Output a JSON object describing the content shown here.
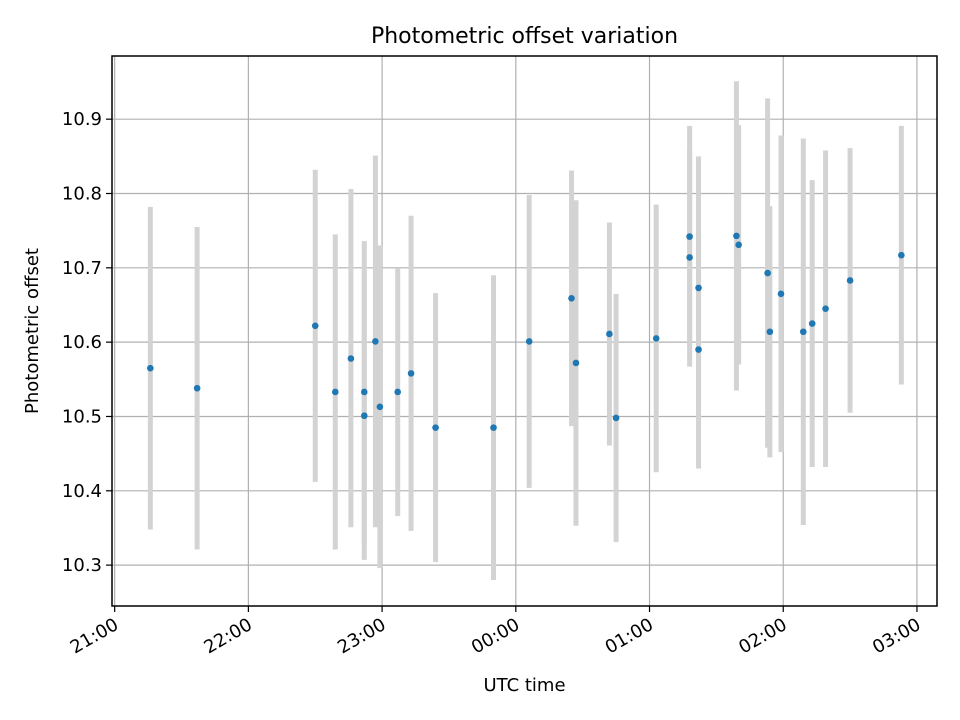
{
  "chart_data": {
    "type": "scatter",
    "title": "Photometric offset variation",
    "xlabel": "UTC time",
    "ylabel": "Photometric offset",
    "x_ticks": [
      "21:00",
      "22:00",
      "23:00",
      "00:00",
      "01:00",
      "02:00",
      "03:00"
    ],
    "y_ticks": [
      "10.3",
      "10.4",
      "10.5",
      "10.6",
      "10.7",
      "10.8",
      "10.9"
    ],
    "x_unit": "hours since 21:00 UTC",
    "xlim": [
      -0.02,
      6.15
    ],
    "ylim": [
      10.245,
      10.985
    ],
    "grid": true,
    "marker_color": "#1f77b4",
    "errorbar_color": "#d3d3d3",
    "points": [
      {
        "time": "21:16",
        "value": 10.565,
        "low": 10.348,
        "high": 10.782
      },
      {
        "time": "21:37",
        "value": 10.538,
        "low": 10.321,
        "high": 10.755
      },
      {
        "time": "22:30",
        "value": 10.622,
        "low": 10.412,
        "high": 10.832
      },
      {
        "time": "22:39",
        "value": 10.533,
        "low": 10.321,
        "high": 10.745
      },
      {
        "time": "22:46",
        "value": 10.578,
        "low": 10.351,
        "high": 10.806
      },
      {
        "time": "22:52",
        "value": 10.533,
        "low": 10.33,
        "high": 10.736
      },
      {
        "time": "22:52",
        "value": 10.501,
        "low": 10.307,
        "high": 10.695
      },
      {
        "time": "22:57",
        "value": 10.601,
        "low": 10.351,
        "high": 10.851
      },
      {
        "time": "22:59",
        "value": 10.513,
        "low": 10.296,
        "high": 10.73
      },
      {
        "time": "23:07",
        "value": 10.533,
        "low": 10.366,
        "high": 10.7
      },
      {
        "time": "23:13",
        "value": 10.558,
        "low": 10.346,
        "high": 10.77
      },
      {
        "time": "23:24",
        "value": 10.485,
        "low": 10.304,
        "high": 10.666
      },
      {
        "time": "23:50",
        "value": 10.485,
        "low": 10.28,
        "high": 10.69
      },
      {
        "time": "00:06",
        "value": 10.601,
        "low": 10.404,
        "high": 10.798
      },
      {
        "time": "00:25",
        "value": 10.659,
        "low": 10.487,
        "high": 10.831
      },
      {
        "time": "00:27",
        "value": 10.572,
        "low": 10.353,
        "high": 10.791
      },
      {
        "time": "00:42",
        "value": 10.611,
        "low": 10.461,
        "high": 10.761
      },
      {
        "time": "00:45",
        "value": 10.498,
        "low": 10.331,
        "high": 10.665
      },
      {
        "time": "01:03",
        "value": 10.605,
        "low": 10.425,
        "high": 10.785
      },
      {
        "time": "01:18",
        "value": 10.742,
        "low": 10.593,
        "high": 10.891
      },
      {
        "time": "01:18",
        "value": 10.714,
        "low": 10.567,
        "high": 10.861
      },
      {
        "time": "01:22",
        "value": 10.59,
        "low": 10.43,
        "high": 10.75
      },
      {
        "time": "01:22",
        "value": 10.673,
        "low": 10.496,
        "high": 10.85
      },
      {
        "time": "01:39",
        "value": 10.743,
        "low": 10.535,
        "high": 10.951
      },
      {
        "time": "01:40",
        "value": 10.731,
        "low": 10.57,
        "high": 10.892
      },
      {
        "time": "01:53",
        "value": 10.693,
        "low": 10.458,
        "high": 10.928
      },
      {
        "time": "01:54",
        "value": 10.614,
        "low": 10.445,
        "high": 10.783
      },
      {
        "time": "01:59",
        "value": 10.665,
        "low": 10.452,
        "high": 10.878
      },
      {
        "time": "02:09",
        "value": 10.614,
        "low": 10.354,
        "high": 10.874
      },
      {
        "time": "02:13",
        "value": 10.625,
        "low": 10.432,
        "high": 10.818
      },
      {
        "time": "02:19",
        "value": 10.645,
        "low": 10.432,
        "high": 10.858
      },
      {
        "time": "02:30",
        "value": 10.683,
        "low": 10.505,
        "high": 10.861
      },
      {
        "time": "02:53",
        "value": 10.717,
        "low": 10.543,
        "high": 10.891
      }
    ]
  }
}
